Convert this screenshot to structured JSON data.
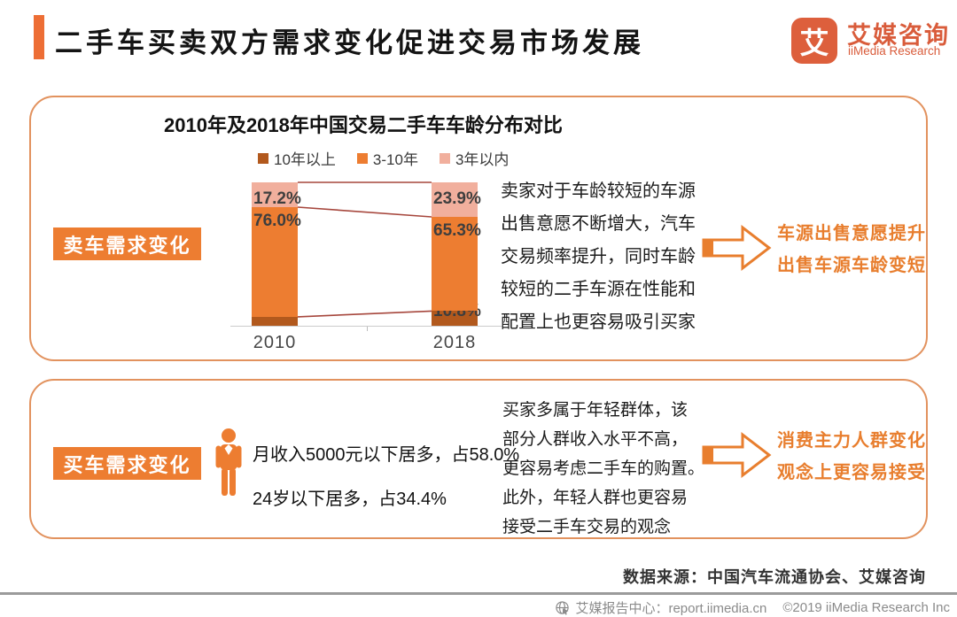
{
  "header": {
    "title": "二手车买卖双方需求变化促进交易市场发展",
    "logo": {
      "icon_char": "艾",
      "name_cn": "艾媒咨询",
      "name_en": "iiMedia Research"
    }
  },
  "chart_data": {
    "type": "bar",
    "stacked": true,
    "title": "2010年及2018年中国交易二手车车龄分布对比",
    "categories": [
      "2010",
      "2018"
    ],
    "series": [
      {
        "name": "10年以上",
        "color": "#B2591D",
        "values": [
          6.8,
          10.8
        ]
      },
      {
        "name": "3-10年",
        "color": "#ED7D31",
        "values": [
          76.0,
          65.3
        ]
      },
      {
        "name": "3年以内",
        "color": "#F1AF9D",
        "values": [
          17.2,
          23.9
        ]
      }
    ],
    "unit": "%",
    "ylim": [
      0,
      100
    ],
    "legend_position": "top",
    "data_labels": true,
    "connector_color": "#A6463C"
  },
  "panel_sell": {
    "tag": "卖车需求变化",
    "description_lines": [
      "卖家对于车龄较短的车源",
      "出售意愿不断增大，汽车",
      "交易频率提升，同时车龄",
      "较短的二手车源在性能和",
      "配置上也更容易吸引买家"
    ],
    "callout_lines": [
      "车源出售意愿提升",
      "出售车源车龄变短"
    ]
  },
  "panel_buy": {
    "tag": "买车需求变化",
    "stat_lines": [
      "月收入5000元以下居多，占58.0%",
      "24岁以下居多，占34.4%"
    ],
    "description_lines": [
      "买家多属于年轻群体，该",
      "部分人群收入水平不高，",
      "更容易考虑二手车的购置。",
      "此外，年轻人群也更容易",
      "接受二手车交易的观念"
    ],
    "callout_lines": [
      "消费主力人群变化",
      "观念上更容易接受"
    ]
  },
  "footer": {
    "source": "数据来源：中国汽车流通协会、艾媒咨询",
    "report_center": "艾媒报告中心：report.iimedia.cn",
    "copyright": "©2019  iiMedia Research  Inc"
  },
  "colors": {
    "accent": "#ED7D31",
    "header_bar": "#ED6E35",
    "logo": "#DD5F3C",
    "panel_border": "#E2925E",
    "callout_text": "#E87E2E",
    "connector": "#A6463C",
    "footer_text": "#8b8b8b"
  }
}
